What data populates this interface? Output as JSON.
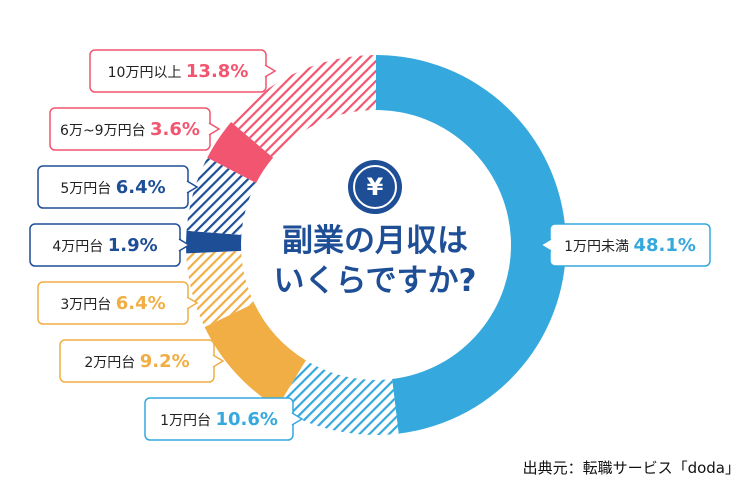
{
  "chart_data": {
    "type": "pie",
    "donut": true,
    "title": "副業の月収はいくらですか?",
    "title_lines": [
      "副業の月収は",
      "いくらですか?"
    ],
    "slices": [
      {
        "label": "1万円未満",
        "value": 48.1,
        "value_text": "48.1%",
        "color": "#35a8dd",
        "fill": "solid"
      },
      {
        "label": "1万円台",
        "value": 10.6,
        "value_text": "10.6%",
        "color": "#35a8dd",
        "fill": "hatch"
      },
      {
        "label": "2万円台",
        "value": 9.2,
        "value_text": "9.2%",
        "color": "#f0ae45",
        "fill": "solid"
      },
      {
        "label": "3万円台",
        "value": 6.4,
        "value_text": "6.4%",
        "color": "#f0ae45",
        "fill": "hatch"
      },
      {
        "label": "4万円台",
        "value": 1.9,
        "value_text": "1.9%",
        "color": "#1e4e95",
        "fill": "solid"
      },
      {
        "label": "5万円台",
        "value": 6.4,
        "value_text": "6.4%",
        "color": "#1e4e95",
        "fill": "hatch"
      },
      {
        "label": "6万~9万円台",
        "value": 3.6,
        "value_text": "3.6%",
        "color": "#f2556f",
        "fill": "solid"
      },
      {
        "label": "10万円以上",
        "value": 13.8,
        "value_text": "13.8%",
        "color": "#f2556f",
        "fill": "hatch"
      }
    ]
  },
  "center_icon": "yen-icon",
  "center_icon_glyph": "¥",
  "source": "出典元：転職サービス「doda」"
}
